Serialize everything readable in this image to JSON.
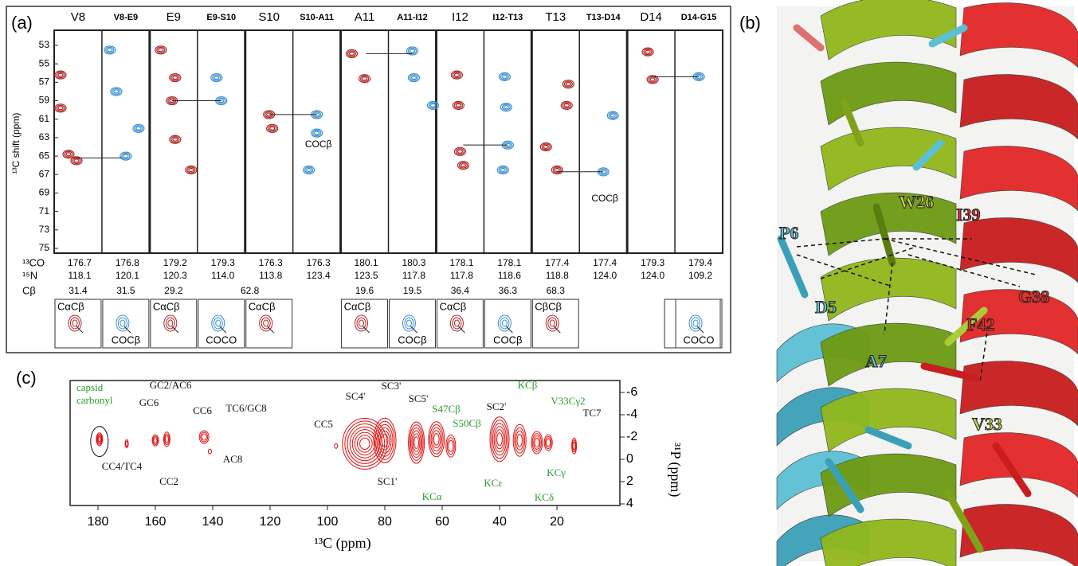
{
  "panel_a": {
    "label": "(a)",
    "y_axis_label": "¹³C shift (ppm)",
    "y_ticks": [
      53,
      55,
      57,
      59,
      61,
      63,
      65,
      67,
      69,
      71,
      73,
      75
    ],
    "row_labels": [
      "¹³CO",
      "¹⁵N",
      "Cβ"
    ],
    "strips": [
      {
        "header": "V8",
        "co": "176.7",
        "n": "118.1",
        "cb": "31.4",
        "inset": "CαCβ"
      },
      {
        "header": "V8-E9",
        "co": "176.8",
        "n": "120.1",
        "cb": "31.5",
        "inset": "COCβ"
      },
      {
        "header": "E9",
        "co": "179.2",
        "n": "120.3",
        "cb": "29.2",
        "inset": "CαCβ"
      },
      {
        "header": "E9-S10",
        "co": "179.3",
        "n": "114.0",
        "inset": "COCO"
      },
      {
        "header": "S10",
        "co": "176.3",
        "n": "113.8",
        "cb": "62.8",
        "inset": "CαCβ"
      },
      {
        "header": "S10-A11",
        "co": "176.3",
        "n": "123.4",
        "annotation": "COCβ"
      },
      {
        "header": "A11",
        "co": "180.1",
        "n": "123.5",
        "cb": "19.6",
        "inset": "CαCβ"
      },
      {
        "header": "A11-I12",
        "co": "180.3",
        "n": "117.8",
        "cb": "19.5",
        "inset": "COCβ"
      },
      {
        "header": "I12",
        "co": "178.1",
        "n": "117.8",
        "cb": "36.4",
        "inset": "CαCβ"
      },
      {
        "header": "I12-T13",
        "co": "178.1",
        "n": "118.6",
        "cb": "36.3",
        "inset": "COCβ"
      },
      {
        "header": "T13",
        "co": "177.4",
        "n": "118.8",
        "cb": "68.3",
        "inset": "CβCβ"
      },
      {
        "header": "T13-D14",
        "co": "177.4",
        "n": "124.0",
        "annotation": "COCβ"
      },
      {
        "header": "D14",
        "co": "179.3",
        "n": "124.0"
      },
      {
        "header": "D14-G15",
        "co": "179.4",
        "n": "109.2",
        "inset": "COCO"
      }
    ]
  },
  "panel_b": {
    "label": "(b)",
    "residues": [
      "W26",
      "I39",
      "P6",
      "G38",
      "D5",
      "F42",
      "A7",
      "V33"
    ]
  },
  "panel_c": {
    "label": "(c)",
    "x_axis_label": "¹³C (ppm)",
    "y_axis_label": "³¹P (ppm)",
    "x_ticks": [
      180,
      160,
      140,
      120,
      100,
      80,
      60,
      40,
      20
    ],
    "y_ticks": [
      -6,
      -4,
      -2,
      0,
      2,
      4
    ],
    "capsid_label": [
      "capsid",
      "carbonyl"
    ],
    "annotations": [
      "CC4/TC4",
      "GC6",
      "GC2/AC6",
      "CC2",
      "CC6",
      "TC6/GC8",
      "AC8",
      "CC5",
      "SC4'",
      "SC3'",
      "SC1'",
      "SC5'",
      "S47Cβ",
      "S50Cβ",
      "KCα",
      "SC2'",
      "KCβ",
      "V33Cγ2",
      "TC7",
      "KCε",
      "KCγ",
      "KCδ"
    ]
  }
}
